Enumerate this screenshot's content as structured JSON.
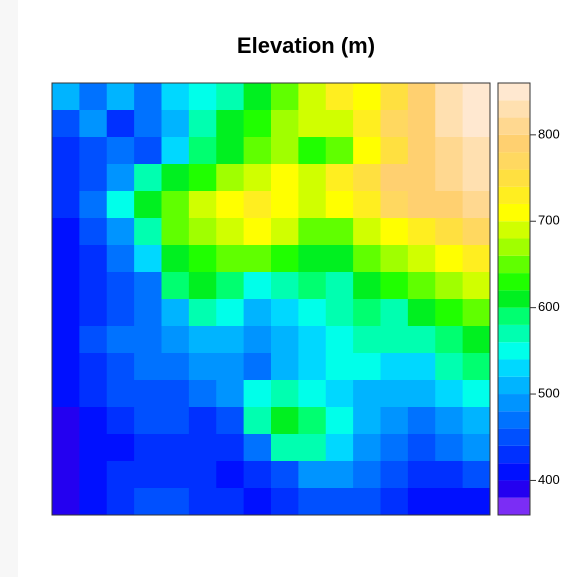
{
  "chart_data": {
    "type": "heatmap",
    "title": "Elevation (m)",
    "z": [
      [
        500,
        460,
        500,
        470,
        520,
        550,
        560,
        600,
        640,
        680,
        720,
        700,
        740,
        780,
        820,
        850
      ],
      [
        450,
        480,
        430,
        470,
        500,
        560,
        600,
        620,
        660,
        690,
        680,
        720,
        760,
        790,
        820,
        840
      ],
      [
        430,
        450,
        460,
        440,
        520,
        580,
        600,
        640,
        660,
        620,
        650,
        700,
        740,
        780,
        810,
        830
      ],
      [
        420,
        440,
        480,
        560,
        600,
        620,
        660,
        680,
        700,
        680,
        720,
        750,
        780,
        790,
        800,
        820
      ],
      [
        420,
        470,
        550,
        600,
        640,
        680,
        700,
        720,
        700,
        690,
        700,
        720,
        760,
        780,
        780,
        800
      ],
      [
        410,
        440,
        480,
        560,
        640,
        660,
        690,
        700,
        680,
        650,
        640,
        680,
        700,
        720,
        740,
        760
      ],
      [
        400,
        430,
        460,
        520,
        600,
        620,
        640,
        640,
        620,
        600,
        600,
        640,
        660,
        680,
        700,
        720
      ],
      [
        400,
        420,
        440,
        470,
        580,
        600,
        580,
        540,
        560,
        580,
        560,
        600,
        620,
        640,
        660,
        680
      ],
      [
        400,
        420,
        450,
        470,
        500,
        560,
        540,
        500,
        520,
        540,
        560,
        580,
        560,
        600,
        620,
        640
      ],
      [
        410,
        440,
        460,
        470,
        480,
        500,
        510,
        480,
        500,
        520,
        540,
        560,
        560,
        560,
        580,
        600
      ],
      [
        400,
        430,
        440,
        460,
        470,
        480,
        480,
        470,
        500,
        520,
        540,
        540,
        520,
        520,
        560,
        580
      ],
      [
        400,
        420,
        440,
        450,
        450,
        460,
        480,
        540,
        560,
        540,
        520,
        500,
        500,
        500,
        520,
        540
      ],
      [
        390,
        410,
        430,
        440,
        440,
        420,
        450,
        560,
        600,
        580,
        540,
        510,
        480,
        470,
        490,
        500
      ],
      [
        390,
        410,
        400,
        420,
        430,
        420,
        430,
        470,
        560,
        560,
        520,
        480,
        460,
        440,
        460,
        480
      ],
      [
        380,
        400,
        420,
        430,
        430,
        420,
        410,
        420,
        450,
        490,
        480,
        460,
        440,
        420,
        430,
        450
      ],
      [
        390,
        410,
        430,
        440,
        440,
        430,
        420,
        410,
        420,
        440,
        450,
        440,
        420,
        410,
        410,
        400
      ]
    ],
    "breaks": [
      360,
      380,
      400,
      420,
      440,
      460,
      480,
      500,
      520,
      540,
      560,
      580,
      600,
      620,
      640,
      660,
      680,
      700,
      720,
      740,
      760,
      780,
      800,
      820,
      840,
      860
    ],
    "colors": [
      "#7b2df5",
      "#2400f0",
      "#0010ff",
      "#0030ff",
      "#0050ff",
      "#0072ff",
      "#0094ff",
      "#00b4ff",
      "#00d8ff",
      "#00ffea",
      "#00ffb0",
      "#00ff70",
      "#00f020",
      "#20ff00",
      "#60ff00",
      "#a0ff00",
      "#d0ff00",
      "#ffff00",
      "#ffee20",
      "#ffe040",
      "#ffd860",
      "#ffd070",
      "#ffd890",
      "#ffe0b0",
      "#ffe8d0"
    ],
    "zticks": [
      400,
      500,
      600,
      700,
      800
    ]
  }
}
